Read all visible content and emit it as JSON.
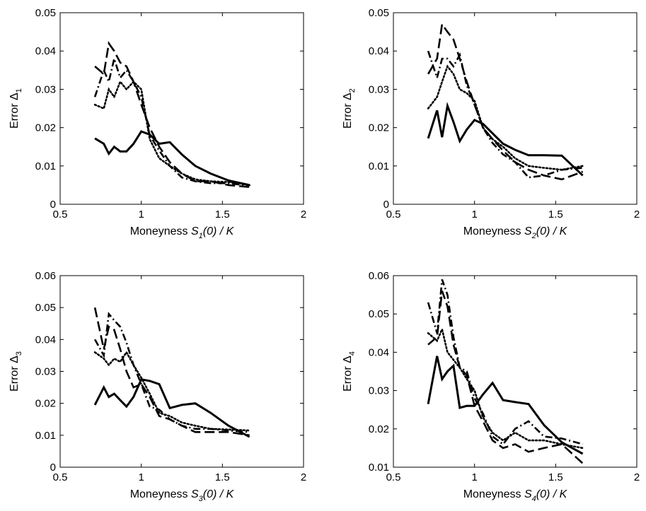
{
  "colors": {
    "line": "#000000",
    "background": "#ffffff"
  },
  "chart_data": [
    {
      "type": "line",
      "xlabel": {
        "prefix": "Moneyness ",
        "var": "S",
        "sub": "1",
        "suffix": "(0) / K"
      },
      "ylabel": {
        "prefix": "Error ",
        "symbol": "Δ",
        "sub": "1"
      },
      "xlim": [
        0.5,
        2
      ],
      "ylim": [
        0,
        0.05
      ],
      "xticks": [
        0.5,
        1,
        1.5,
        2
      ],
      "xtick_labels": [
        "0.5",
        "1",
        "1.5",
        "2"
      ],
      "yticks": [
        0,
        0.01,
        0.02,
        0.03,
        0.04,
        0.05
      ],
      "ytick_labels": [
        "0",
        "0.01",
        "0.02",
        "0.03",
        "0.04",
        "0.05"
      ],
      "x": [
        0.714,
        0.769,
        0.8,
        0.833,
        0.87,
        0.909,
        0.952,
        1.0,
        1.052,
        1.111,
        1.176,
        1.25,
        1.333,
        1.428,
        1.538,
        1.667
      ],
      "series": [
        {
          "name": "solid",
          "style": "solid",
          "values": [
            0.0172,
            0.0158,
            0.0132,
            0.015,
            0.0138,
            0.0138,
            0.0158,
            0.019,
            0.0182,
            0.0158,
            0.0162,
            0.013,
            0.01,
            0.008,
            0.0062,
            0.005
          ]
        },
        {
          "name": "dashed",
          "style": "dashed",
          "values": [
            0.036,
            0.034,
            0.042,
            0.04,
            0.037,
            0.036,
            0.032,
            0.026,
            0.02,
            0.015,
            0.011,
            0.008,
            0.006,
            0.006,
            0.005,
            0.0045
          ]
        },
        {
          "name": "dash-dot",
          "style": "dashdot",
          "values": [
            0.028,
            0.035,
            0.032,
            0.038,
            0.033,
            0.035,
            0.032,
            0.028,
            0.018,
            0.014,
            0.01,
            0.007,
            0.006,
            0.0055,
            0.0055,
            0.0048
          ]
        },
        {
          "name": "dotted",
          "style": "dotted",
          "values": [
            0.026,
            0.025,
            0.03,
            0.028,
            0.032,
            0.03,
            0.032,
            0.03,
            0.017,
            0.012,
            0.01,
            0.008,
            0.0065,
            0.006,
            0.0058,
            0.005
          ]
        }
      ]
    },
    {
      "type": "line",
      "xlabel": {
        "prefix": "Moneyness ",
        "var": "S",
        "sub": "2",
        "suffix": "(0) / K"
      },
      "ylabel": {
        "prefix": "Error ",
        "symbol": "Δ",
        "sub": "2"
      },
      "xlim": [
        0.5,
        2
      ],
      "ylim": [
        0,
        0.05
      ],
      "xticks": [
        0.5,
        1,
        1.5,
        2
      ],
      "xtick_labels": [
        "0.5",
        "1",
        "1.5",
        "2"
      ],
      "yticks": [
        0,
        0.01,
        0.02,
        0.03,
        0.04,
        0.05
      ],
      "ytick_labels": [
        "0",
        "0.01",
        "0.02",
        "0.03",
        "0.04",
        "0.05"
      ],
      "x": [
        0.714,
        0.769,
        0.8,
        0.833,
        0.87,
        0.909,
        0.952,
        1.0,
        1.052,
        1.111,
        1.176,
        1.25,
        1.333,
        1.428,
        1.538,
        1.667
      ],
      "series": [
        {
          "name": "solid",
          "style": "solid",
          "values": [
            0.0172,
            0.0245,
            0.0175,
            0.0257,
            0.0215,
            0.0165,
            0.0195,
            0.022,
            0.021,
            0.0185,
            0.0158,
            0.0142,
            0.0128,
            0.0128,
            0.0127,
            0.0075
          ]
        },
        {
          "name": "dashed",
          "style": "dashed",
          "values": [
            0.034,
            0.038,
            0.047,
            0.045,
            0.043,
            0.038,
            0.032,
            0.026,
            0.02,
            0.017,
            0.014,
            0.011,
            0.009,
            0.0075,
            0.0065,
            0.0085
          ]
        },
        {
          "name": "dash-dot",
          "style": "dashdot",
          "values": [
            0.04,
            0.033,
            0.038,
            0.038,
            0.036,
            0.039,
            0.031,
            0.026,
            0.02,
            0.016,
            0.013,
            0.011,
            0.007,
            0.0075,
            0.009,
            0.0095
          ]
        },
        {
          "name": "dotted",
          "style": "dotted",
          "values": [
            0.025,
            0.028,
            0.032,
            0.036,
            0.034,
            0.03,
            0.029,
            0.027,
            0.02,
            0.017,
            0.015,
            0.012,
            0.01,
            0.0095,
            0.009,
            0.01
          ]
        }
      ]
    },
    {
      "type": "line",
      "xlabel": {
        "prefix": "Moneyness ",
        "var": "S",
        "sub": "3",
        "suffix": "(0) / K"
      },
      "ylabel": {
        "prefix": "Error ",
        "symbol": "Δ",
        "sub": "3"
      },
      "xlim": [
        0.5,
        2
      ],
      "ylim": [
        0,
        0.06
      ],
      "xticks": [
        0.5,
        1,
        1.5,
        2
      ],
      "xtick_labels": [
        "0.5",
        "1",
        "1.5",
        "2"
      ],
      "yticks": [
        0,
        0.01,
        0.02,
        0.03,
        0.04,
        0.05,
        0.06
      ],
      "ytick_labels": [
        "0",
        "0.01",
        "0.02",
        "0.03",
        "0.04",
        "0.05",
        "0.06"
      ],
      "x": [
        0.714,
        0.769,
        0.8,
        0.833,
        0.87,
        0.909,
        0.952,
        1.0,
        1.052,
        1.111,
        1.176,
        1.25,
        1.333,
        1.428,
        1.538,
        1.667
      ],
      "series": [
        {
          "name": "solid",
          "style": "solid",
          "values": [
            0.0195,
            0.025,
            0.022,
            0.023,
            0.021,
            0.019,
            0.022,
            0.0275,
            0.027,
            0.026,
            0.0185,
            0.0195,
            0.02,
            0.017,
            0.013,
            0.0095
          ]
        },
        {
          "name": "dashed",
          "style": "dashed",
          "values": [
            0.05,
            0.037,
            0.044,
            0.043,
            0.037,
            0.03,
            0.025,
            0.026,
            0.022,
            0.016,
            0.015,
            0.013,
            0.011,
            0.011,
            0.011,
            0.01
          ]
        },
        {
          "name": "dash-dot",
          "style": "dashdot",
          "values": [
            0.04,
            0.035,
            0.048,
            0.046,
            0.044,
            0.039,
            0.032,
            0.026,
            0.019,
            0.018,
            0.015,
            0.013,
            0.012,
            0.012,
            0.0115,
            0.011
          ]
        },
        {
          "name": "dotted",
          "style": "dotted",
          "values": [
            0.036,
            0.034,
            0.032,
            0.034,
            0.033,
            0.036,
            0.032,
            0.028,
            0.023,
            0.017,
            0.016,
            0.014,
            0.013,
            0.012,
            0.0118,
            0.0115
          ]
        }
      ]
    },
    {
      "type": "line",
      "xlabel": {
        "prefix": "Moneyness ",
        "var": "S",
        "sub": "4",
        "suffix": "(0) / K"
      },
      "ylabel": {
        "prefix": "Error ",
        "symbol": "Δ",
        "sub": "4"
      },
      "xlim": [
        0.5,
        2
      ],
      "ylim": [
        0.01,
        0.06
      ],
      "xticks": [
        0.5,
        1,
        1.5,
        2
      ],
      "xtick_labels": [
        "0.5",
        "1",
        "1.5",
        "2"
      ],
      "yticks": [
        0.01,
        0.02,
        0.03,
        0.04,
        0.05,
        0.06
      ],
      "ytick_labels": [
        "0.01",
        "0.02",
        "0.03",
        "0.04",
        "0.05",
        "0.06"
      ],
      "x": [
        0.714,
        0.769,
        0.8,
        0.833,
        0.87,
        0.909,
        0.952,
        1.0,
        1.052,
        1.111,
        1.176,
        1.25,
        1.333,
        1.428,
        1.538,
        1.667
      ],
      "series": [
        {
          "name": "solid",
          "style": "solid",
          "values": [
            0.0265,
            0.039,
            0.033,
            0.035,
            0.0365,
            0.0255,
            0.026,
            0.026,
            0.029,
            0.032,
            0.0275,
            0.027,
            0.0265,
            0.021,
            0.0165,
            0.0135
          ]
        },
        {
          "name": "dashed",
          "style": "dashed",
          "values": [
            0.042,
            0.044,
            0.056,
            0.052,
            0.042,
            0.036,
            0.034,
            0.026,
            0.022,
            0.017,
            0.015,
            0.016,
            0.014,
            0.015,
            0.016,
            0.011
          ]
        },
        {
          "name": "dash-dot",
          "style": "dashdot",
          "values": [
            0.053,
            0.045,
            0.059,
            0.055,
            0.044,
            0.036,
            0.035,
            0.028,
            0.024,
            0.018,
            0.016,
            0.02,
            0.022,
            0.018,
            0.0175,
            0.016
          ]
        },
        {
          "name": "dotted",
          "style": "dotted",
          "values": [
            0.045,
            0.043,
            0.046,
            0.04,
            0.038,
            0.036,
            0.033,
            0.03,
            0.023,
            0.019,
            0.017,
            0.019,
            0.017,
            0.017,
            0.016,
            0.015
          ]
        }
      ]
    }
  ]
}
